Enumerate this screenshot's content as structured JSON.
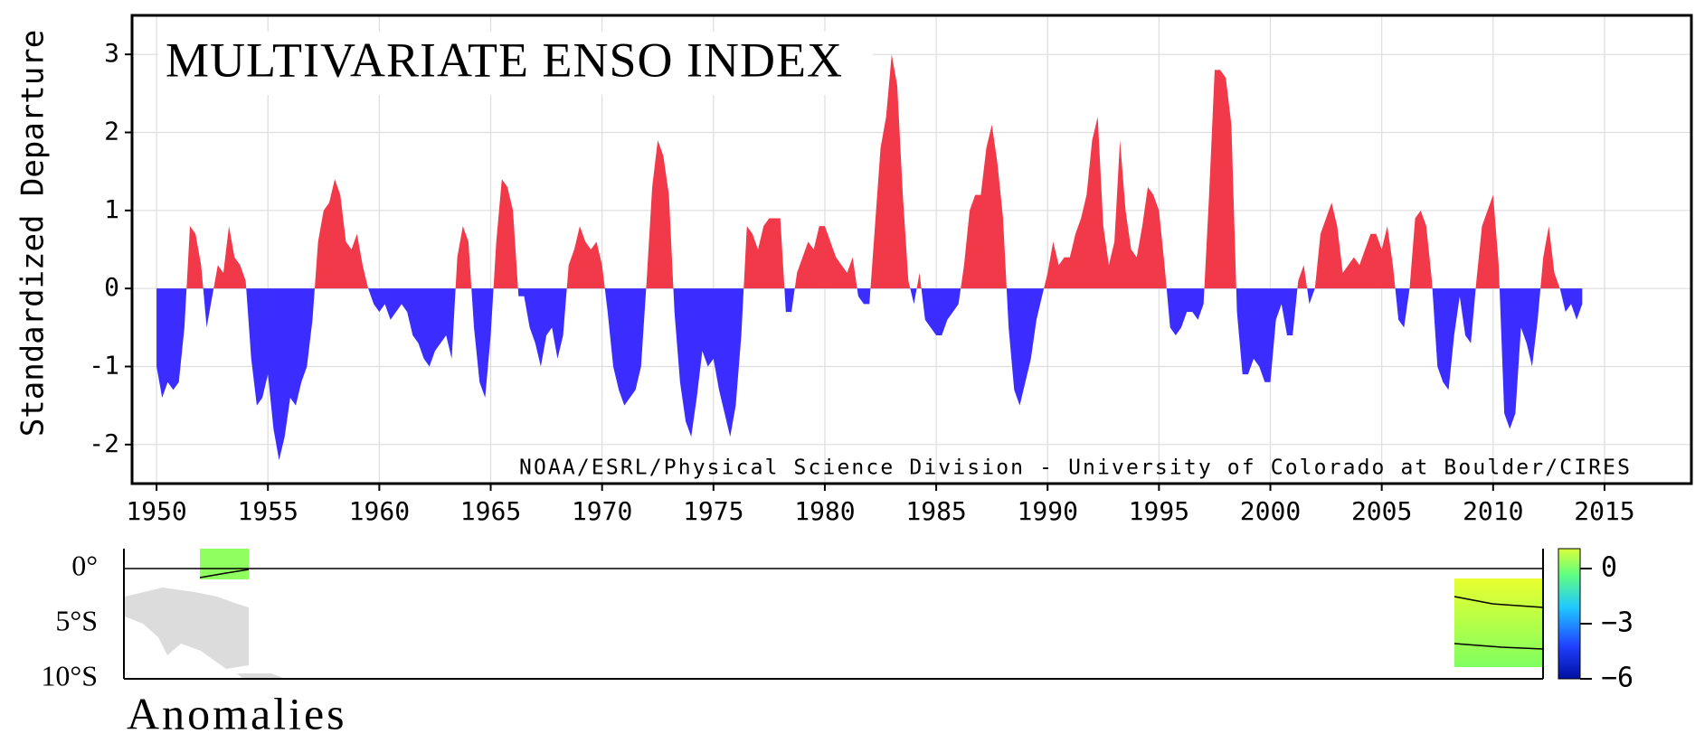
{
  "chart_data": {
    "type": "area",
    "title": "MULTIVARIATE ENSO INDEX",
    "y_label": "Standardized Departure",
    "annotation": "NOAA/ESRL/Physical Science Division - University of Colorado at Boulder/CIRES",
    "pos_color": "#f2394a",
    "neg_color": "#3b2cff",
    "grid": true,
    "xlim": [
      1948.9,
      2018.9
    ],
    "ylim": [
      -2.5,
      3.5
    ],
    "xticks": [
      1950,
      1955,
      1960,
      1965,
      1970,
      1975,
      1980,
      1985,
      1990,
      1995,
      2000,
      2005,
      2010,
      2015
    ],
    "yticks": [
      -2,
      -1,
      0,
      1,
      2,
      3
    ],
    "x": [
      1950,
      1950.25,
      1950.5,
      1950.75,
      1951,
      1951.25,
      1951.5,
      1951.75,
      1952,
      1952.25,
      1952.5,
      1952.75,
      1953,
      1953.25,
      1953.5,
      1953.75,
      1954,
      1954.25,
      1954.5,
      1954.75,
      1955,
      1955.25,
      1955.5,
      1955.75,
      1956,
      1956.25,
      1956.5,
      1956.75,
      1957,
      1957.25,
      1957.5,
      1957.75,
      1958,
      1958.25,
      1958.5,
      1958.75,
      1959,
      1959.25,
      1959.5,
      1959.75,
      1960,
      1960.25,
      1960.5,
      1960.75,
      1961,
      1961.25,
      1961.5,
      1961.75,
      1962,
      1962.25,
      1962.5,
      1962.75,
      1963,
      1963.25,
      1963.5,
      1963.75,
      1964,
      1964.25,
      1964.5,
      1964.75,
      1965,
      1965.25,
      1965.5,
      1965.75,
      1966,
      1966.25,
      1966.5,
      1966.75,
      1967,
      1967.25,
      1967.5,
      1967.75,
      1968,
      1968.25,
      1968.5,
      1968.75,
      1969,
      1969.25,
      1969.5,
      1969.75,
      1970,
      1970.25,
      1970.5,
      1970.75,
      1971,
      1971.25,
      1971.5,
      1971.75,
      1972,
      1972.25,
      1972.5,
      1972.75,
      1973,
      1973.25,
      1973.5,
      1973.75,
      1974,
      1974.25,
      1974.5,
      1974.75,
      1975,
      1975.25,
      1975.5,
      1975.75,
      1976,
      1976.25,
      1976.5,
      1976.75,
      1977,
      1977.25,
      1977.5,
      1977.75,
      1978,
      1978.25,
      1978.5,
      1978.75,
      1979,
      1979.25,
      1979.5,
      1979.75,
      1980,
      1980.25,
      1980.5,
      1980.75,
      1981,
      1981.25,
      1981.5,
      1981.75,
      1982,
      1982.25,
      1982.5,
      1982.75,
      1983,
      1983.25,
      1983.5,
      1983.75,
      1984,
      1984.25,
      1984.5,
      1984.75,
      1985,
      1985.25,
      1985.5,
      1985.75,
      1986,
      1986.25,
      1986.5,
      1986.75,
      1987,
      1987.25,
      1987.5,
      1987.75,
      1988,
      1988.25,
      1988.5,
      1988.75,
      1989,
      1989.25,
      1989.5,
      1989.75,
      1990,
      1990.25,
      1990.5,
      1990.75,
      1991,
      1991.25,
      1991.5,
      1991.75,
      1992,
      1992.25,
      1992.5,
      1992.75,
      1993,
      1993.25,
      1993.5,
      1993.75,
      1994,
      1994.25,
      1994.5,
      1994.75,
      1995,
      1995.25,
      1995.5,
      1995.75,
      1996,
      1996.25,
      1996.5,
      1996.75,
      1997,
      1997.25,
      1997.5,
      1997.75,
      1998,
      1998.25,
      1998.5,
      1998.75,
      1999,
      1999.25,
      1999.5,
      1999.75,
      2000,
      2000.25,
      2000.5,
      2000.75,
      2001,
      2001.25,
      2001.5,
      2001.75,
      2002,
      2002.25,
      2002.5,
      2002.75,
      2003,
      2003.25,
      2003.5,
      2003.75,
      2004,
      2004.25,
      2004.5,
      2004.75,
      2005,
      2005.25,
      2005.5,
      2005.75,
      2006,
      2006.25,
      2006.5,
      2006.75,
      2007,
      2007.25,
      2007.5,
      2007.75,
      2008,
      2008.25,
      2008.5,
      2008.75,
      2009,
      2009.25,
      2009.5,
      2009.75,
      2010,
      2010.25,
      2010.5,
      2010.75,
      2011,
      2011.25,
      2011.5,
      2011.75,
      2012,
      2012.25,
      2012.5,
      2012.75,
      2013,
      2013.25,
      2013.5,
      2013.75,
      2014
    ],
    "values": [
      -1.0,
      -1.4,
      -1.2,
      -1.3,
      -1.2,
      -0.5,
      0.8,
      0.7,
      0.3,
      -0.5,
      -0.1,
      0.3,
      0.2,
      0.8,
      0.4,
      0.3,
      0.1,
      -0.9,
      -1.5,
      -1.4,
      -1.1,
      -1.8,
      -2.2,
      -1.9,
      -1.4,
      -1.5,
      -1.2,
      -1.0,
      -0.4,
      0.6,
      1.0,
      1.1,
      1.4,
      1.2,
      0.6,
      0.5,
      0.7,
      0.3,
      0.0,
      -0.2,
      -0.3,
      -0.2,
      -0.4,
      -0.3,
      -0.2,
      -0.3,
      -0.6,
      -0.7,
      -0.9,
      -1.0,
      -0.8,
      -0.7,
      -0.6,
      -0.9,
      0.4,
      0.8,
      0.6,
      -0.5,
      -1.2,
      -1.4,
      -0.6,
      0.6,
      1.4,
      1.3,
      1.0,
      -0.1,
      -0.1,
      -0.5,
      -0.7,
      -1.0,
      -0.6,
      -0.5,
      -0.9,
      -0.6,
      0.3,
      0.5,
      0.8,
      0.6,
      0.5,
      0.6,
      0.3,
      -0.3,
      -1.0,
      -1.3,
      -1.5,
      -1.4,
      -1.3,
      -1.0,
      0.1,
      1.3,
      1.9,
      1.7,
      1.2,
      -0.3,
      -1.2,
      -1.7,
      -1.9,
      -1.4,
      -0.8,
      -1.0,
      -0.9,
      -1.3,
      -1.6,
      -1.9,
      -1.5,
      -0.6,
      0.8,
      0.7,
      0.5,
      0.8,
      0.9,
      0.9,
      0.9,
      -0.3,
      -0.3,
      0.2,
      0.4,
      0.6,
      0.5,
      0.8,
      0.8,
      0.6,
      0.4,
      0.3,
      0.2,
      0.4,
      -0.1,
      -0.2,
      -0.2,
      0.8,
      1.8,
      2.2,
      3.0,
      2.6,
      1.2,
      0.1,
      -0.2,
      0.2,
      -0.4,
      -0.5,
      -0.6,
      -0.6,
      -0.4,
      -0.3,
      -0.2,
      0.3,
      1.0,
      1.2,
      1.2,
      1.8,
      2.1,
      1.6,
      0.9,
      -0.5,
      -1.3,
      -1.5,
      -1.2,
      -0.9,
      -0.4,
      -0.1,
      0.2,
      0.6,
      0.3,
      0.4,
      0.4,
      0.7,
      0.9,
      1.2,
      1.9,
      2.2,
      0.8,
      0.3,
      0.6,
      1.9,
      1.0,
      0.5,
      0.4,
      0.8,
      1.3,
      1.2,
      1.0,
      0.3,
      -0.5,
      -0.6,
      -0.5,
      -0.3,
      -0.3,
      -0.4,
      -0.2,
      1.2,
      2.8,
      2.8,
      2.7,
      2.1,
      -0.3,
      -1.1,
      -1.1,
      -0.9,
      -1.0,
      -1.2,
      -1.2,
      -0.4,
      -0.2,
      -0.6,
      -0.6,
      0.1,
      0.3,
      -0.2,
      0.0,
      0.7,
      0.9,
      1.1,
      0.8,
      0.2,
      0.3,
      0.4,
      0.3,
      0.5,
      0.7,
      0.7,
      0.5,
      0.8,
      0.3,
      -0.4,
      -0.5,
      0.0,
      0.9,
      1.0,
      0.8,
      0.1,
      -1.0,
      -1.2,
      -1.3,
      -0.6,
      -0.1,
      -0.6,
      -0.7,
      0.1,
      0.8,
      1.0,
      1.2,
      0.3,
      -1.6,
      -1.8,
      -1.6,
      -0.5,
      -0.7,
      -1.0,
      -0.4,
      0.4,
      0.8,
      0.2,
      0.0,
      -0.3,
      -0.2,
      -0.4,
      -0.2
    ]
  },
  "map": {
    "title": "Anomalies",
    "lat_labels": [
      "0°",
      "5°S",
      "10°S"
    ],
    "colorbar_ticks": [
      {
        "value": 0,
        "label": "0"
      },
      {
        "value": -3,
        "label": "−3"
      },
      {
        "value": -6,
        "label": "−6"
      }
    ]
  }
}
